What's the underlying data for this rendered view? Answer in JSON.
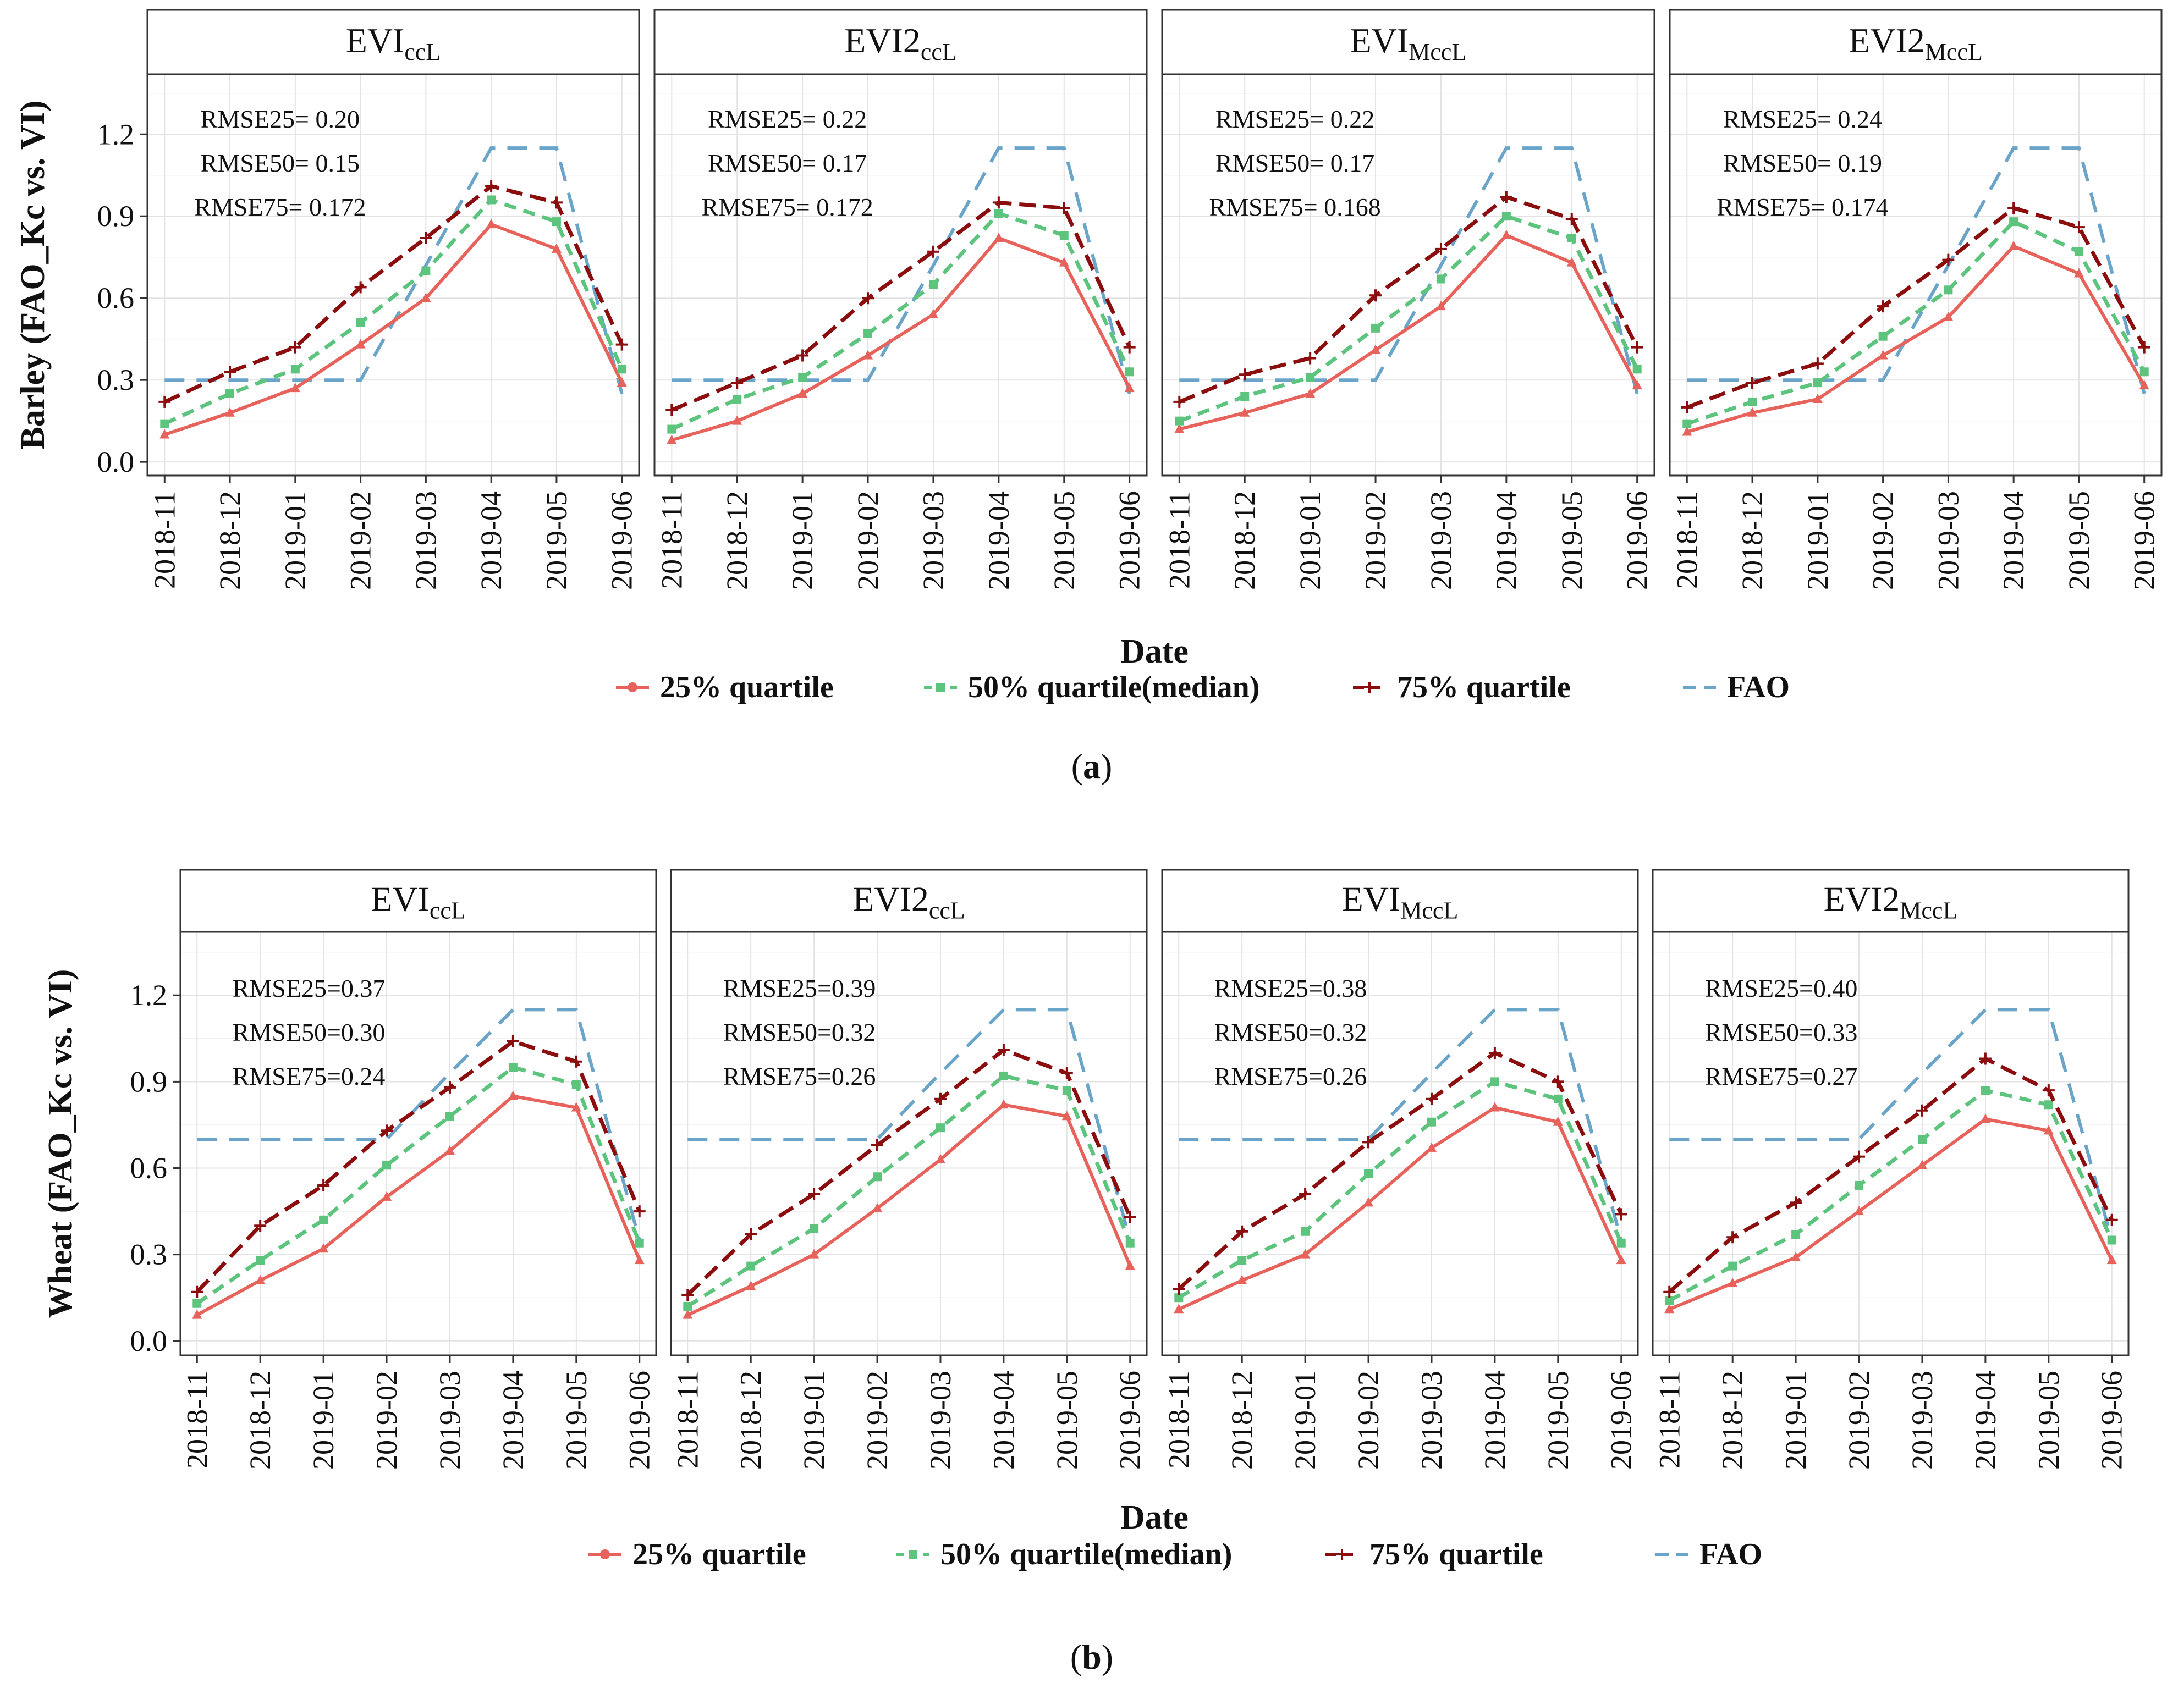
{
  "figure": {
    "x_categories": [
      "2018-11",
      "2018-12",
      "2019-01",
      "2019-02",
      "2019-03",
      "2019-04",
      "2019-05",
      "2019-06"
    ],
    "y_ticks": [
      "0.0",
      "0.3",
      "0.6",
      "0.9",
      "1.2"
    ],
    "series_colors": {
      "q25": "#e8625c",
      "q50": "#5dc47e",
      "q75": "#8b0d0d",
      "fao": "#6aa5c9"
    }
  },
  "chart_data": [
    {
      "type": "line",
      "caption_open": "(",
      "caption_letter": "a",
      "caption_close": ")",
      "ylabel": "Barley (FAO_Kc vs. VI)",
      "xlabel": "Date",
      "ylim": [
        -0.05,
        1.42
      ],
      "legend": [
        "25% quartile",
        "50% quartile(median)",
        "75% quartile",
        "FAO"
      ],
      "categories": [
        "2018-11",
        "2018-12",
        "2019-01",
        "2019-02",
        "2019-03",
        "2019-04",
        "2019-05",
        "2019-06"
      ],
      "fao_x": [
        0,
        1,
        2,
        3,
        4,
        5,
        6,
        7
      ],
      "fao_y": [
        0.3,
        0.3,
        0.3,
        0.3,
        0.72,
        1.15,
        1.15,
        0.25
      ],
      "panels": [
        {
          "title_main": "EVI",
          "title_sub": "ccL",
          "rmse": [
            "RMSE25= 0.20",
            "RMSE50= 0.15",
            "RMSE75= 0.172"
          ],
          "series": [
            {
              "name": "25% quartile",
              "values": [
                0.1,
                0.18,
                0.27,
                0.43,
                0.6,
                0.87,
                0.78,
                0.29
              ]
            },
            {
              "name": "50% quartile(median)",
              "values": [
                0.14,
                0.25,
                0.34,
                0.51,
                0.7,
                0.96,
                0.88,
                0.34
              ]
            },
            {
              "name": "75% quartile",
              "values": [
                0.22,
                0.33,
                0.42,
                0.64,
                0.82,
                1.01,
                0.95,
                0.43
              ]
            }
          ]
        },
        {
          "title_main": "EVI2",
          "title_sub": "ccL",
          "rmse": [
            "RMSE25= 0.22",
            "RMSE50= 0.17",
            "RMSE75= 0.172"
          ],
          "series": [
            {
              "name": "25% quartile",
              "values": [
                0.08,
                0.15,
                0.25,
                0.39,
                0.54,
                0.82,
                0.73,
                0.27
              ]
            },
            {
              "name": "50% quartile(median)",
              "values": [
                0.12,
                0.23,
                0.31,
                0.47,
                0.65,
                0.91,
                0.83,
                0.33
              ]
            },
            {
              "name": "75% quartile",
              "values": [
                0.19,
                0.29,
                0.39,
                0.6,
                0.77,
                0.95,
                0.93,
                0.42
              ]
            }
          ]
        },
        {
          "title_main": "EVI",
          "title_sub": "MccL",
          "rmse": [
            "RMSE25= 0.22",
            "RMSE50= 0.17",
            "RMSE75= 0.168"
          ],
          "series": [
            {
              "name": "25% quartile",
              "values": [
                0.12,
                0.18,
                0.25,
                0.41,
                0.57,
                0.83,
                0.73,
                0.28
              ]
            },
            {
              "name": "50% quartile(median)",
              "values": [
                0.15,
                0.24,
                0.31,
                0.49,
                0.67,
                0.9,
                0.82,
                0.34
              ]
            },
            {
              "name": "75% quartile",
              "values": [
                0.22,
                0.32,
                0.38,
                0.61,
                0.78,
                0.97,
                0.89,
                0.42
              ]
            }
          ]
        },
        {
          "title_main": "EVI2",
          "title_sub": "MccL",
          "rmse": [
            "RMSE25= 0.24",
            "RMSE50= 0.19",
            "RMSE75= 0.174"
          ],
          "series": [
            {
              "name": "25% quartile",
              "values": [
                0.11,
                0.18,
                0.23,
                0.39,
                0.53,
                0.79,
                0.69,
                0.28
              ]
            },
            {
              "name": "50% quartile(median)",
              "values": [
                0.14,
                0.22,
                0.29,
                0.46,
                0.63,
                0.88,
                0.77,
                0.33
              ]
            },
            {
              "name": "75% quartile",
              "values": [
                0.2,
                0.29,
                0.36,
                0.57,
                0.74,
                0.93,
                0.86,
                0.42
              ]
            }
          ]
        }
      ]
    },
    {
      "type": "line",
      "caption_open": "(",
      "caption_letter": "b",
      "caption_close": ")",
      "ylabel": "Wheat (FAO_Kc vs. VI)",
      "xlabel": "Date",
      "ylim": [
        -0.05,
        1.42
      ],
      "legend": [
        "25% quartile",
        "50% quartile(median)",
        "75% quartile",
        "FAO"
      ],
      "categories": [
        "2018-11",
        "2018-12",
        "2019-01",
        "2019-02",
        "2019-03",
        "2019-04",
        "2019-05",
        "2019-06"
      ],
      "fao_x": [
        0,
        1,
        2,
        3,
        4,
        5,
        6,
        7
      ],
      "fao_y": [
        0.7,
        0.7,
        0.7,
        0.7,
        0.93,
        1.15,
        1.15,
        0.35
      ],
      "panels": [
        {
          "title_main": "EVI",
          "title_sub": "ccL",
          "rmse": [
            "RMSE25=0.37",
            "RMSE50=0.30",
            "RMSE75=0.24"
          ],
          "series": [
            {
              "name": "25% quartile",
              "values": [
                0.09,
                0.21,
                0.32,
                0.5,
                0.66,
                0.85,
                0.81,
                0.28
              ]
            },
            {
              "name": "50% quartile(median)",
              "values": [
                0.13,
                0.28,
                0.42,
                0.61,
                0.78,
                0.95,
                0.89,
                0.34
              ]
            },
            {
              "name": "75% quartile",
              "values": [
                0.17,
                0.4,
                0.54,
                0.73,
                0.88,
                1.04,
                0.97,
                0.45
              ]
            }
          ]
        },
        {
          "title_main": "EVI2",
          "title_sub": "ccL",
          "rmse": [
            "RMSE25=0.39",
            "RMSE50=0.32",
            "RMSE75=0.26"
          ],
          "series": [
            {
              "name": "25% quartile",
              "values": [
                0.09,
                0.19,
                0.3,
                0.46,
                0.63,
                0.82,
                0.78,
                0.26
              ]
            },
            {
              "name": "50% quartile(median)",
              "values": [
                0.12,
                0.26,
                0.39,
                0.57,
                0.74,
                0.92,
                0.87,
                0.34
              ]
            },
            {
              "name": "75% quartile",
              "values": [
                0.16,
                0.37,
                0.51,
                0.68,
                0.84,
                1.01,
                0.93,
                0.43
              ]
            }
          ]
        },
        {
          "title_main": "EVI",
          "title_sub": "MccL",
          "rmse": [
            "RMSE25=0.38",
            "RMSE50=0.32",
            "RMSE75=0.26"
          ],
          "series": [
            {
              "name": "25% quartile",
              "values": [
                0.11,
                0.21,
                0.3,
                0.48,
                0.67,
                0.81,
                0.76,
                0.28
              ]
            },
            {
              "name": "50% quartile(median)",
              "values": [
                0.15,
                0.28,
                0.38,
                0.58,
                0.76,
                0.9,
                0.84,
                0.34
              ]
            },
            {
              "name": "75% quartile",
              "values": [
                0.18,
                0.38,
                0.51,
                0.69,
                0.84,
                1.0,
                0.9,
                0.44
              ]
            }
          ]
        },
        {
          "title_main": "EVI2",
          "title_sub": "MccL",
          "rmse": [
            "RMSE25=0.40",
            "RMSE50=0.33",
            "RMSE75=0.27"
          ],
          "series": [
            {
              "name": "25% quartile",
              "values": [
                0.11,
                0.2,
                0.29,
                0.45,
                0.61,
                0.77,
                0.73,
                0.28
              ]
            },
            {
              "name": "50% quartile(median)",
              "values": [
                0.14,
                0.26,
                0.37,
                0.54,
                0.7,
                0.87,
                0.82,
                0.35
              ]
            },
            {
              "name": "75% quartile",
              "values": [
                0.17,
                0.36,
                0.48,
                0.64,
                0.8,
                0.98,
                0.87,
                0.42
              ]
            }
          ]
        }
      ]
    }
  ]
}
